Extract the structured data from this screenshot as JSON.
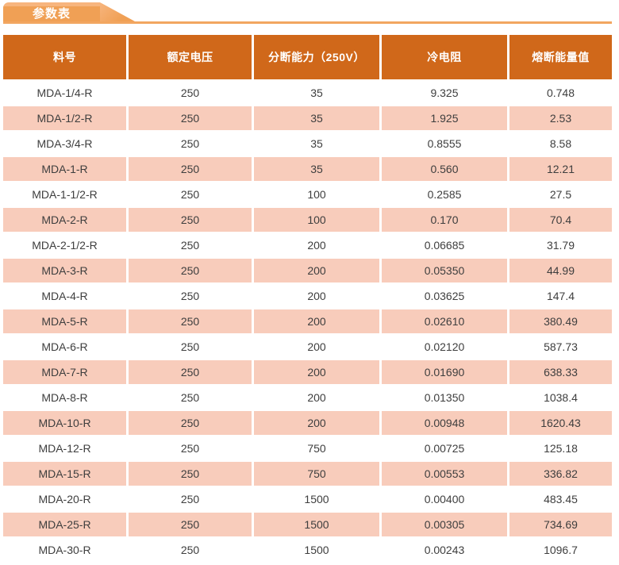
{
  "page": {
    "tab": {
      "label": "参数表"
    }
  },
  "table": {
    "columns": [
      "料号",
      "额定电压",
      "分断能力（250V）",
      "冷电阻",
      "熔断能量值"
    ],
    "rows": [
      [
        "MDA-1/4-R",
        "250",
        "35",
        "9.325",
        "0.748"
      ],
      [
        "MDA-1/2-R",
        "250",
        "35",
        "1.925",
        "2.53"
      ],
      [
        "MDA-3/4-R",
        "250",
        "35",
        "0.8555",
        "8.58"
      ],
      [
        "MDA-1-R",
        "250",
        "35",
        "0.560",
        "12.21"
      ],
      [
        "MDA-1-1/2-R",
        "250",
        "100",
        "0.2585",
        "27.5"
      ],
      [
        "MDA-2-R",
        "250",
        "100",
        "0.170",
        "70.4"
      ],
      [
        "MDA-2-1/2-R",
        "250",
        "200",
        "0.06685",
        "31.79"
      ],
      [
        "MDA-3-R",
        "250",
        "200",
        "0.05350",
        "44.99"
      ],
      [
        "MDA-4-R",
        "250",
        "200",
        "0.03625",
        "147.4"
      ],
      [
        "MDA-5-R",
        "250",
        "200",
        "0.02610",
        "380.49"
      ],
      [
        "MDA-6-R",
        "250",
        "200",
        "0.02120",
        "587.73"
      ],
      [
        "MDA-7-R",
        "250",
        "200",
        "0.01690",
        "638.33"
      ],
      [
        "MDA-8-R",
        "250",
        "200",
        "0.01350",
        "1038.4"
      ],
      [
        "MDA-10-R",
        "250",
        "200",
        "0.00948",
        "1620.43"
      ],
      [
        "MDA-12-R",
        "250",
        "750",
        "0.00725",
        "125.18"
      ],
      [
        "MDA-15-R",
        "250",
        "750",
        "0.00553",
        "336.82"
      ],
      [
        "MDA-20-R",
        "250",
        "1500",
        "0.00400",
        "483.45"
      ],
      [
        "MDA-25-R",
        "250",
        "1500",
        "0.00305",
        "734.69"
      ],
      [
        "MDA-30-R",
        "250",
        "1500",
        "0.00243",
        "1096.7"
      ]
    ]
  },
  "colors": {
    "header_bg": "#D0681A",
    "header_text": "#FFFFFF",
    "row_bg": "#FFFFFF",
    "row_alt_bg": "#F8CCBB",
    "body_text": "#3E3E3E",
    "tab_bg": "#F0A055",
    "tab_top": "#F7B57E",
    "tab_line": "#F2A660"
  }
}
